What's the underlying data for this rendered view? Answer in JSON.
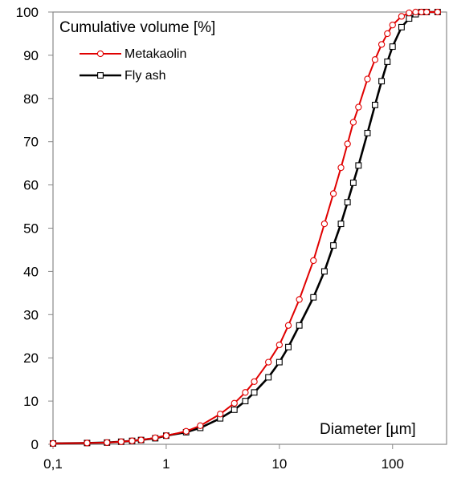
{
  "chart_data": {
    "type": "line",
    "xscale": "log",
    "xlim": [
      0.1,
      300
    ],
    "ylim": [
      0,
      100
    ],
    "xticks": [
      0.1,
      1,
      10,
      100
    ],
    "xtick_labels": [
      "0,1",
      "1",
      "10",
      "100"
    ],
    "yticks": [
      0,
      10,
      20,
      30,
      40,
      50,
      60,
      70,
      80,
      90,
      100
    ],
    "ytick_labels": [
      "0",
      "10",
      "20",
      "30",
      "40",
      "50",
      "60",
      "70",
      "80",
      "90",
      "100"
    ],
    "ylabel": "Cumulative volume [%]",
    "xlabel": "Diameter [µm]",
    "grid": false,
    "legend_position": "top-left",
    "series": [
      {
        "name": "Metakaolin",
        "color": "#e00000",
        "marker": "circle",
        "x": [
          0.1,
          0.2,
          0.3,
          0.4,
          0.5,
          0.6,
          0.8,
          1,
          1.5,
          2,
          3,
          4,
          5,
          6,
          8,
          10,
          12,
          15,
          20,
          25,
          30,
          35,
          40,
          45,
          50,
          60,
          70,
          80,
          90,
          100,
          120,
          140,
          160,
          180,
          200,
          250
        ],
        "y": [
          0.2,
          0.3,
          0.4,
          0.6,
          0.8,
          1.0,
          1.5,
          2.0,
          3.0,
          4.3,
          7.0,
          9.5,
          12.0,
          14.5,
          19.0,
          23.0,
          27.5,
          33.5,
          42.5,
          51.0,
          58.0,
          64.0,
          69.5,
          74.5,
          78.0,
          84.5,
          89.0,
          92.5,
          95.0,
          97.0,
          99.0,
          99.8,
          100,
          100,
          100,
          100
        ]
      },
      {
        "name": "Fly ash",
        "color": "#000000",
        "marker": "square",
        "x": [
          0.1,
          0.2,
          0.3,
          0.4,
          0.5,
          0.6,
          0.8,
          1,
          1.5,
          2,
          3,
          4,
          5,
          6,
          8,
          10,
          12,
          15,
          20,
          25,
          30,
          35,
          40,
          45,
          50,
          60,
          70,
          80,
          90,
          100,
          120,
          140,
          160,
          180,
          200,
          250
        ],
        "y": [
          0.2,
          0.3,
          0.4,
          0.6,
          0.8,
          1.0,
          1.4,
          2.0,
          2.8,
          3.8,
          6.0,
          8.0,
          10.0,
          12.0,
          15.5,
          19.0,
          22.5,
          27.5,
          34.0,
          40.0,
          46.0,
          51.0,
          56.0,
          60.5,
          64.5,
          72.0,
          78.5,
          84.0,
          88.5,
          92.0,
          96.5,
          98.5,
          99.5,
          100,
          100,
          100
        ]
      }
    ]
  }
}
